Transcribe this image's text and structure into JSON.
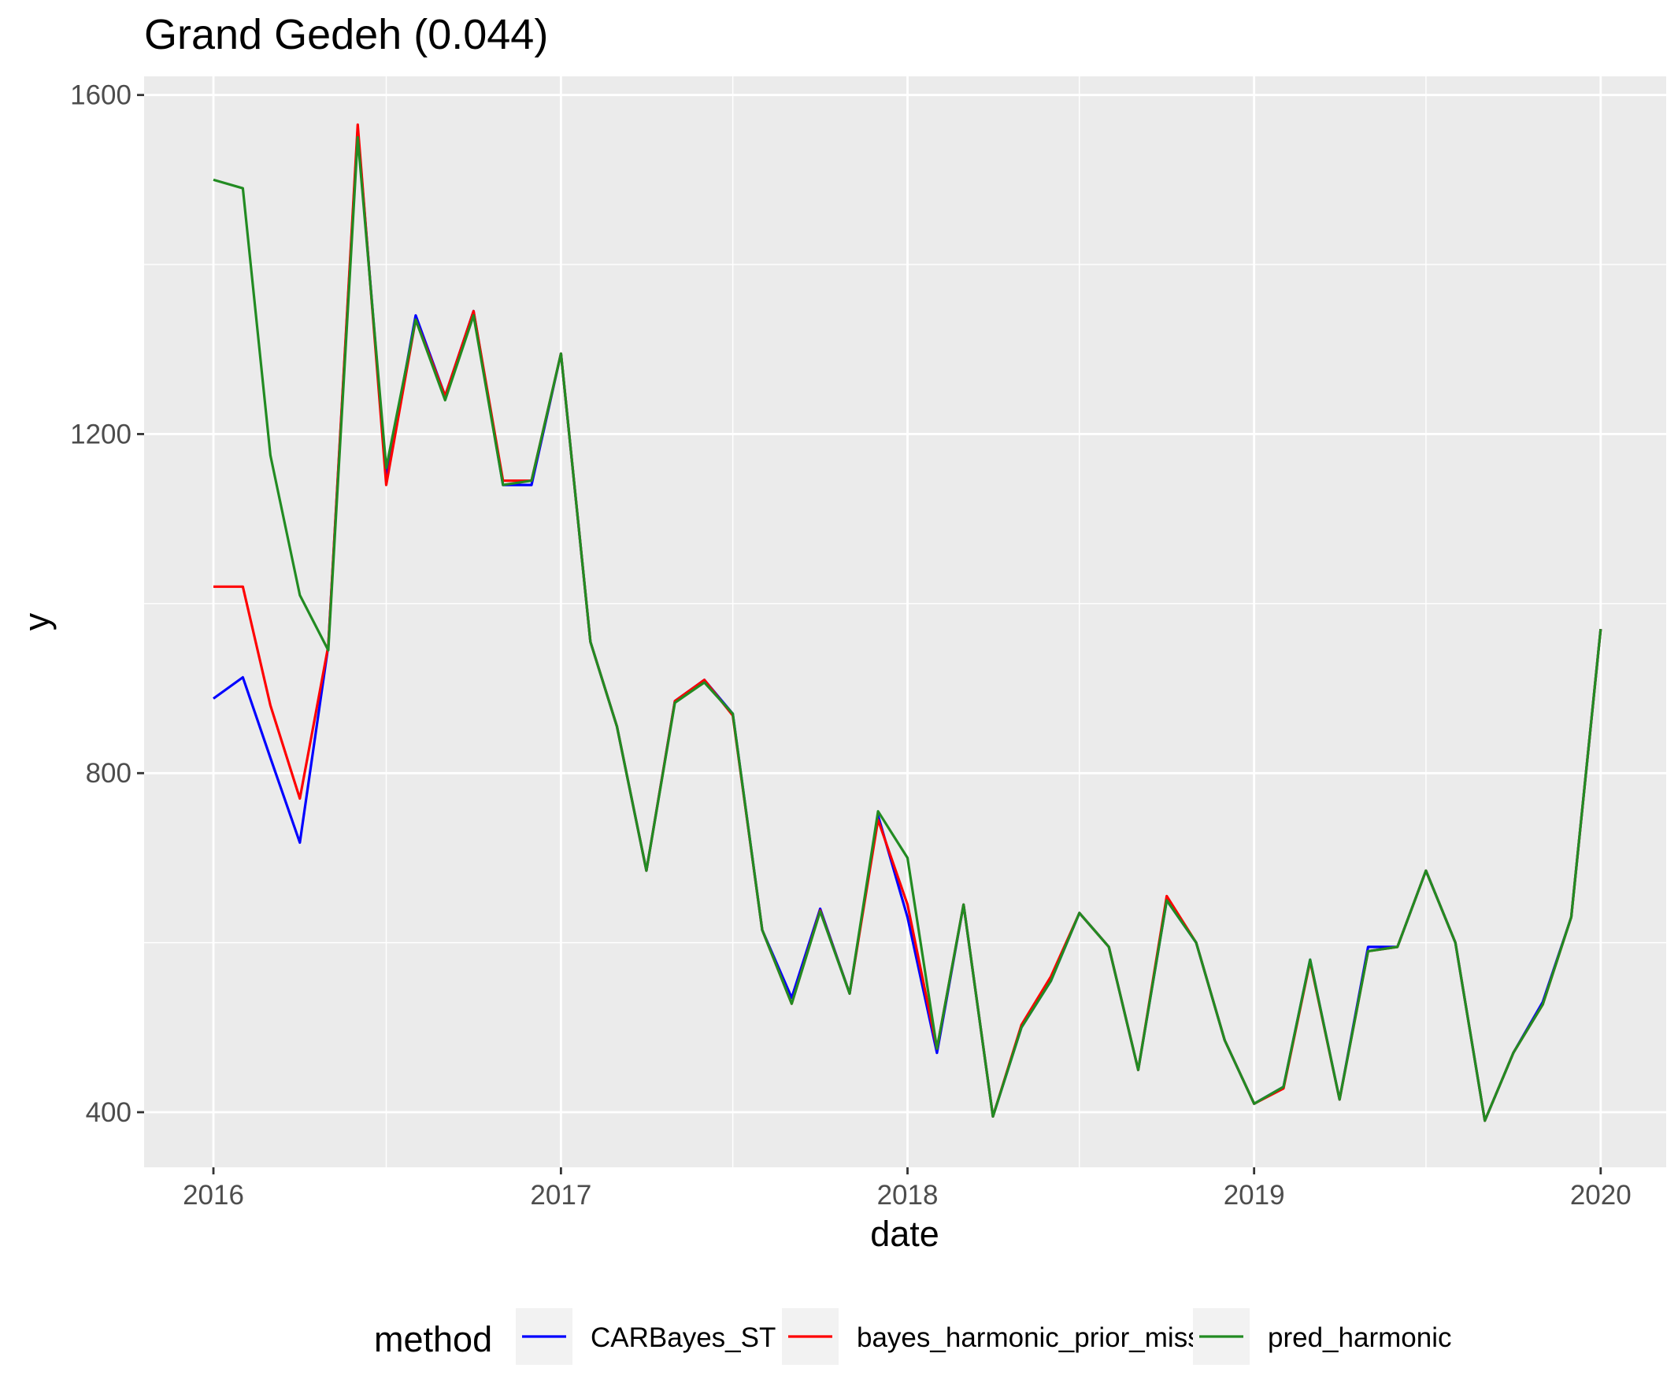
{
  "chart_data": {
    "type": "line",
    "title": "Grand Gedeh (0.044)",
    "xlabel": "date",
    "ylabel": "y",
    "x_ticks": [
      "2016",
      "2017",
      "2018",
      "2019",
      "2020"
    ],
    "y_ticks": [
      400,
      800,
      1200,
      1600
    ],
    "xlim": [
      "2015-10-20",
      "2020-03-10"
    ],
    "ylim": [
      335,
      1622
    ],
    "grid": true,
    "legend_position": "bottom",
    "legend_title": "method",
    "x": [
      "2016-01-01",
      "2016-02-01",
      "2016-03-01",
      "2016-04-01",
      "2016-05-01",
      "2016-06-01",
      "2016-07-01",
      "2016-08-01",
      "2016-09-01",
      "2016-10-01",
      "2016-11-01",
      "2016-12-01",
      "2017-01-01",
      "2017-02-01",
      "2017-03-01",
      "2017-04-01",
      "2017-05-01",
      "2017-06-01",
      "2017-07-01",
      "2017-08-01",
      "2017-09-01",
      "2017-10-01",
      "2017-11-01",
      "2017-12-01",
      "2018-01-01",
      "2018-02-01",
      "2018-03-01",
      "2018-04-01",
      "2018-05-01",
      "2018-06-01",
      "2018-07-01",
      "2018-08-01",
      "2018-09-01",
      "2018-10-01",
      "2018-11-01",
      "2018-12-01",
      "2019-01-01",
      "2019-02-01",
      "2019-03-01",
      "2019-04-01",
      "2019-05-01",
      "2019-06-01",
      "2019-07-01",
      "2019-08-01",
      "2019-09-01",
      "2019-10-01",
      "2019-11-01",
      "2019-12-01",
      "2020-01-01"
    ],
    "series": [
      {
        "name": "CARBayes_ST",
        "color": "#0000ff",
        "values": [
          888,
          913,
          818,
          718,
          950,
          1560,
          1150,
          1340,
          1245,
          1345,
          1140,
          1140,
          1295,
          955,
          855,
          685,
          885,
          910,
          870,
          615,
          535,
          640,
          540,
          750,
          630,
          470,
          645,
          395,
          500,
          555,
          635,
          595,
          450,
          650,
          600,
          485,
          410,
          430,
          580,
          415,
          595,
          595,
          685,
          600,
          390,
          470,
          530,
          630,
          970
        ]
      },
      {
        "name": "bayes_harmonic_prior_miss",
        "color": "#ff0000",
        "values": [
          1020,
          1020,
          880,
          770,
          950,
          1565,
          1140,
          1335,
          1245,
          1345,
          1145,
          1145,
          1295,
          955,
          855,
          685,
          885,
          910,
          868,
          615,
          528,
          638,
          540,
          745,
          645,
          475,
          645,
          395,
          503,
          560,
          635,
          595,
          450,
          655,
          600,
          485,
          410,
          428,
          578,
          415,
          590,
          595,
          685,
          600,
          390,
          470,
          527,
          630,
          970
        ]
      },
      {
        "name": "pred_harmonic",
        "color": "#228b22",
        "values": [
          1500,
          1490,
          1175,
          1010,
          945,
          1550,
          1160,
          1335,
          1240,
          1340,
          1140,
          1145,
          1295,
          955,
          855,
          685,
          883,
          907,
          870,
          615,
          528,
          637,
          540,
          755,
          700,
          475,
          645,
          395,
          500,
          555,
          635,
          595,
          450,
          650,
          600,
          485,
          410,
          430,
          580,
          415,
          590,
          595,
          685,
          600,
          390,
          470,
          527,
          630,
          970
        ]
      }
    ]
  }
}
